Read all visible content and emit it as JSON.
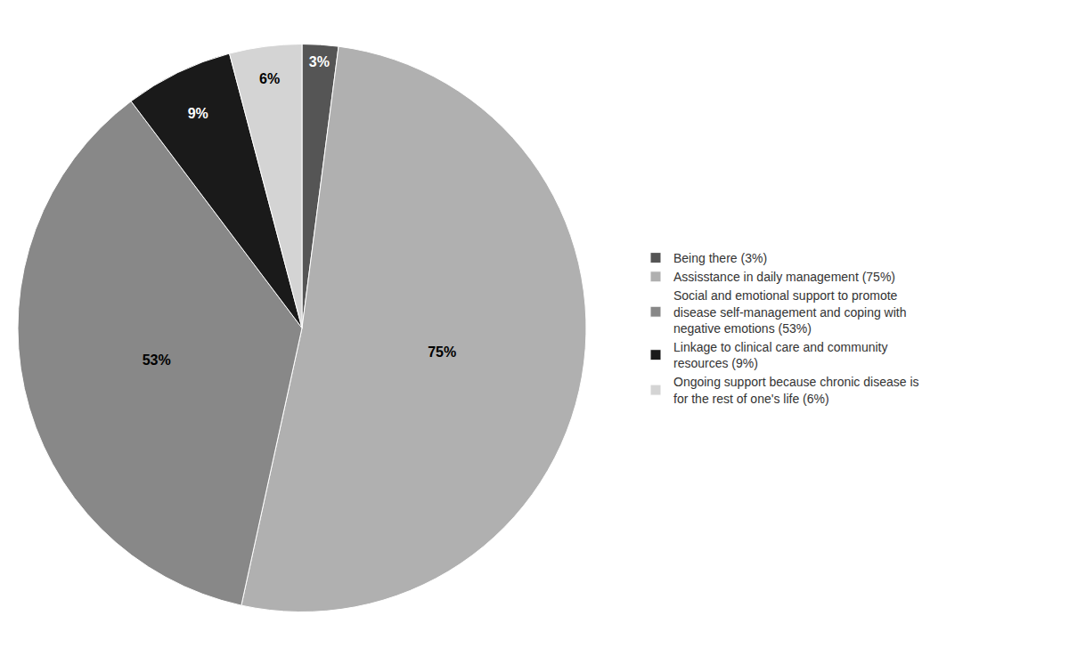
{
  "chart_data": {
    "type": "pie",
    "categories": [
      "Being there (3%)",
      "Assisstance in daily management (75%)",
      "Social and emotional support to promote\ndisease self-management and coping with\nnegative emotions (53%)",
      "Linkage to clinical care and community\nresources (9%)",
      "Ongoing support because chronic disease is\nfor the rest of one's life (6%)"
    ],
    "values": [
      3,
      75,
      53,
      9,
      6
    ],
    "value_labels": [
      "3%",
      "75%",
      "53%",
      "9%",
      "6%"
    ],
    "colors": [
      "#555555",
      "#b0b0b0",
      "#888888",
      "#1a1a1a",
      "#d4d4d4"
    ],
    "data_labels": true,
    "legend": "right"
  }
}
